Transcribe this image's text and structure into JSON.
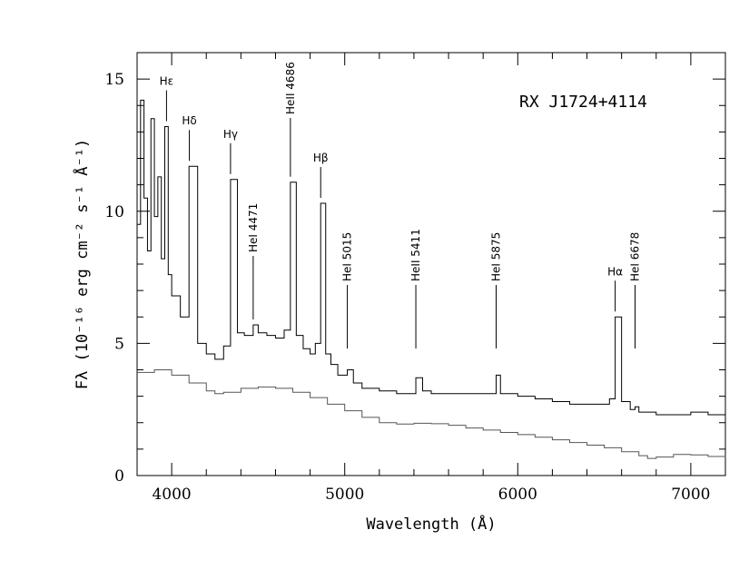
{
  "chart_data": {
    "type": "line",
    "title": "RX J1724+4114",
    "xlabel": "Wavelength (Å)",
    "ylabel": "Fλ (10⁻¹⁶ erg cm⁻² s⁻¹ Å⁻¹)",
    "xlim": [
      3800,
      7200
    ],
    "ylim": [
      0,
      16
    ],
    "x_ticks": [
      4000,
      5000,
      6000,
      7000
    ],
    "x_tick_labels": [
      "4000",
      "5000",
      "6000",
      "7000"
    ],
    "y_ticks": [
      0,
      5,
      10,
      15
    ],
    "y_tick_labels": [
      "0",
      "5",
      "10",
      "15"
    ],
    "grid": false,
    "legend": "none",
    "series": [
      {
        "x": [
          3800,
          3820,
          3840,
          3860,
          3880,
          3900,
          3920,
          3940,
          3960,
          3980,
          4000,
          4050,
          4100,
          4150,
          4200,
          4250,
          4300,
          4340,
          4380,
          4420,
          4471,
          4500,
          4550,
          4600,
          4650,
          4686,
          4720,
          4760,
          4800,
          4830,
          4861,
          4890,
          4920,
          4960,
          5000,
          5015,
          5050,
          5100,
          5200,
          5300,
          5411,
          5450,
          5500,
          5600,
          5700,
          5800,
          5875,
          5900,
          6000,
          6100,
          6200,
          6300,
          6400,
          6500,
          6530,
          6563,
          6600,
          6650,
          6678,
          6700,
          6800,
          6900,
          7000,
          7100,
          7200
        ],
        "y": [
          9.5,
          14.2,
          10.5,
          8.5,
          13.5,
          9.8,
          11.3,
          8.2,
          13.2,
          7.6,
          6.8,
          6.0,
          11.7,
          5.0,
          4.6,
          4.4,
          4.9,
          11.2,
          5.4,
          5.3,
          5.7,
          5.4,
          5.3,
          5.2,
          5.5,
          11.1,
          5.3,
          4.8,
          4.6,
          5.0,
          10.3,
          4.6,
          4.2,
          3.8,
          3.8,
          4.0,
          3.5,
          3.3,
          3.2,
          3.1,
          3.7,
          3.2,
          3.1,
          3.1,
          3.1,
          3.1,
          3.8,
          3.1,
          3.0,
          2.9,
          2.8,
          2.7,
          2.7,
          2.7,
          2.9,
          6.0,
          2.8,
          2.5,
          2.6,
          2.4,
          2.3,
          2.3,
          2.4,
          2.3,
          2.3
        ]
      },
      {
        "x": [
          3800,
          3900,
          4000,
          4100,
          4200,
          4250,
          4300,
          4400,
          4500,
          4600,
          4700,
          4800,
          4900,
          5000,
          5100,
          5200,
          5300,
          5400,
          5500,
          5600,
          5700,
          5800,
          5900,
          6000,
          6100,
          6200,
          6300,
          6400,
          6500,
          6600,
          6700,
          6750,
          6800,
          6900,
          7000,
          7100,
          7200
        ],
        "y": [
          3.9,
          4.0,
          3.8,
          3.5,
          3.2,
          3.1,
          3.15,
          3.3,
          3.35,
          3.3,
          3.15,
          2.95,
          2.7,
          2.45,
          2.2,
          2.0,
          1.95,
          1.98,
          1.96,
          1.9,
          1.8,
          1.72,
          1.63,
          1.55,
          1.45,
          1.35,
          1.25,
          1.15,
          1.05,
          0.9,
          0.75,
          0.65,
          0.7,
          0.8,
          0.78,
          0.72,
          0.7
        ]
      }
    ],
    "annotations": [
      {
        "text": "Hε",
        "x": 3970,
        "vertical": false
      },
      {
        "text": "Hδ",
        "x": 4102,
        "vertical": false
      },
      {
        "text": "Hγ",
        "x": 4340,
        "vertical": false
      },
      {
        "text": "HeI 4471",
        "x": 4471,
        "vertical": true
      },
      {
        "text": "HeII 4686",
        "x": 4686,
        "vertical": true
      },
      {
        "text": "Hβ",
        "x": 4861,
        "vertical": false
      },
      {
        "text": "HeI 5015",
        "x": 5015,
        "vertical": true
      },
      {
        "text": "HeII 5411",
        "x": 5411,
        "vertical": true
      },
      {
        "text": "HeI 5875",
        "x": 5875,
        "vertical": true
      },
      {
        "text": "Hα",
        "x": 6563,
        "vertical": false
      },
      {
        "text": "HeI 6678",
        "x": 6678,
        "vertical": true
      }
    ]
  }
}
